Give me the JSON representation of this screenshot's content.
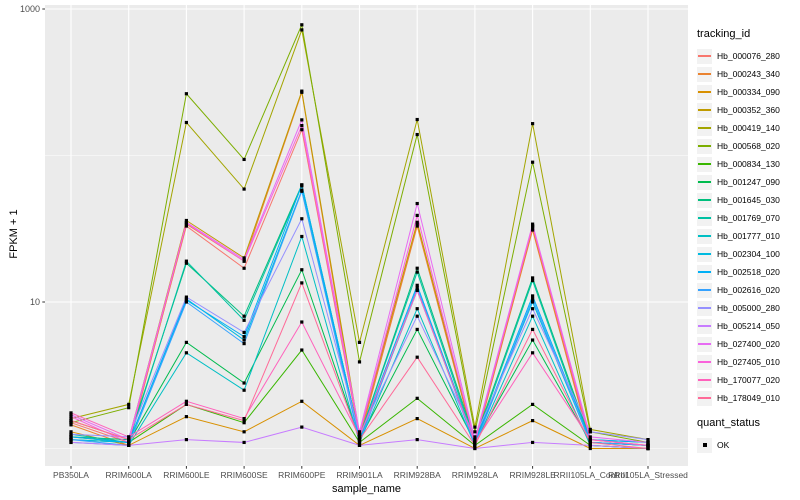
{
  "legend": {
    "tracking_title": "tracking_id",
    "quant_title": "quant_status",
    "quant_ok_label": "OK"
  },
  "style": {
    "panel_bg": "#EBEBEB",
    "grid_color": "#FFFFFF",
    "tick_color": "#333333",
    "tick_label_color": "#4D4D4D",
    "point_color": "#000000",
    "legend_key_bg": "#F2F2F2"
  },
  "chart_data": {
    "type": "line",
    "title": "",
    "xlabel": "sample_name",
    "ylabel": "FPKM + 1",
    "y_scale": "log10",
    "ylim": [
      0.83,
      1100
    ],
    "y_breaks": [
      10,
      1000
    ],
    "y_break_labels": [
      "10",
      "1000"
    ],
    "y_minor_breaks": [
      1,
      100
    ],
    "grid": true,
    "legend_position": "right",
    "point_shape": "filled-square",
    "categories": [
      "PB350LA",
      "RRIM600LA",
      "RRIM600LE",
      "RRIM600SE",
      "RRIM600PE",
      "RRIM901LA",
      "RRIM928BA",
      "RRIM928LA",
      "RRIM928LE",
      "RRII105LA_Control",
      "RRII105LA_Stressed"
    ],
    "series": [
      {
        "name": "Hb_000076_280",
        "color": "#F8766D",
        "values": [
          1.5,
          1.1,
          33,
          17,
          150,
          1.2,
          34,
          1.1,
          32,
          1.1,
          1.05
        ]
      },
      {
        "name": "Hb_000243_340",
        "color": "#EA8331",
        "values": [
          1.45,
          1.05,
          34,
          19,
          270,
          1.15,
          33,
          1.05,
          31,
          1.05,
          1.0
        ]
      },
      {
        "name": "Hb_000334_090",
        "color": "#D89000",
        "values": [
          1.3,
          1.05,
          1.65,
          1.3,
          2.1,
          1.05,
          1.6,
          1.0,
          1.55,
          1.0,
          1.0
        ]
      },
      {
        "name": "Hb_000352_360",
        "color": "#C09B00",
        "values": [
          1.55,
          1.15,
          36,
          20,
          275,
          1.25,
          35,
          1.1,
          33,
          1.15,
          1.05
        ]
      },
      {
        "name": "Hb_000419_140",
        "color": "#A3A500",
        "values": [
          1.6,
          2.0,
          168,
          59,
          720,
          5.3,
          176,
          1.4,
          165,
          1.35,
          1.15
        ]
      },
      {
        "name": "Hb_000568_020",
        "color": "#7CAE00",
        "values": [
          1.5,
          1.9,
          264,
          94,
          780,
          3.9,
          139,
          1.3,
          90,
          1.3,
          1.1
        ]
      },
      {
        "name": "Hb_000834_130",
        "color": "#39B600",
        "values": [
          1.2,
          1.1,
          2.0,
          1.5,
          4.7,
          1.1,
          2.2,
          1.05,
          2.0,
          1.05,
          1.0
        ]
      },
      {
        "name": "Hb_001247_090",
        "color": "#00BB4E",
        "values": [
          1.15,
          1.1,
          5.3,
          2.8,
          16.6,
          1.15,
          6.5,
          1.1,
          5.5,
          1.1,
          1.05
        ]
      },
      {
        "name": "Hb_001645_030",
        "color": "#00BF7D",
        "values": [
          1.2,
          1.15,
          18.4,
          8.0,
          63,
          1.2,
          17,
          1.15,
          14.6,
          1.15,
          1.1
        ]
      },
      {
        "name": "Hb_001769_070",
        "color": "#00C1A3",
        "values": [
          1.25,
          1.1,
          19,
          7.5,
          62,
          1.2,
          16,
          1.1,
          14,
          1.1,
          1.05
        ]
      },
      {
        "name": "Hb_001777_010",
        "color": "#00BFC4",
        "values": [
          1.1,
          1.05,
          4.5,
          2.5,
          28,
          1.1,
          9,
          1.05,
          8,
          1.05,
          1.0
        ]
      },
      {
        "name": "Hb_002304_100",
        "color": "#00BAE0",
        "values": [
          1.15,
          1.1,
          10.5,
          5.5,
          58,
          1.15,
          12,
          1.1,
          10,
          1.1,
          1.05
        ]
      },
      {
        "name": "Hb_002518_020",
        "color": "#00B0F6",
        "values": [
          1.2,
          1.1,
          10.3,
          5.8,
          63,
          1.2,
          13,
          1.1,
          11,
          1.15,
          1.1
        ]
      },
      {
        "name": "Hb_002616_020",
        "color": "#35A2FF",
        "values": [
          1.15,
          1.05,
          10.0,
          5.2,
          57,
          1.1,
          12.5,
          1.05,
          10.5,
          1.1,
          1.05
        ]
      },
      {
        "name": "Hb_005000_280",
        "color": "#9590FF",
        "values": [
          1.25,
          1.2,
          10.8,
          6.2,
          37,
          1.25,
          8,
          1.2,
          9,
          1.3,
          1.15
        ]
      },
      {
        "name": "Hb_005214_050",
        "color": "#C77CFF",
        "values": [
          1.1,
          1.05,
          1.15,
          1.1,
          1.4,
          1.05,
          1.15,
          1.0,
          1.1,
          1.05,
          1.0
        ]
      },
      {
        "name": "Hb_027400_020",
        "color": "#E76BF3",
        "values": [
          1.7,
          1.15,
          35,
          19.5,
          175,
          1.3,
          47,
          1.15,
          34,
          1.2,
          1.1
        ]
      },
      {
        "name": "Hb_027405_010",
        "color": "#FA62DB",
        "values": [
          1.65,
          1.1,
          34.5,
          19,
          160,
          1.25,
          39,
          1.1,
          33,
          1.15,
          1.05
        ]
      },
      {
        "name": "Hb_170077_020",
        "color": "#FF62BC",
        "values": [
          1.75,
          1.2,
          2.1,
          1.6,
          7.3,
          1.2,
          12,
          1.1,
          4.5,
          1.15,
          1.05
        ]
      },
      {
        "name": "Hb_178049_010",
        "color": "#FF6A98",
        "values": [
          1.55,
          1.15,
          2.0,
          1.55,
          13.5,
          1.15,
          4.2,
          1.05,
          6.5,
          1.1,
          1.0
        ]
      }
    ]
  }
}
